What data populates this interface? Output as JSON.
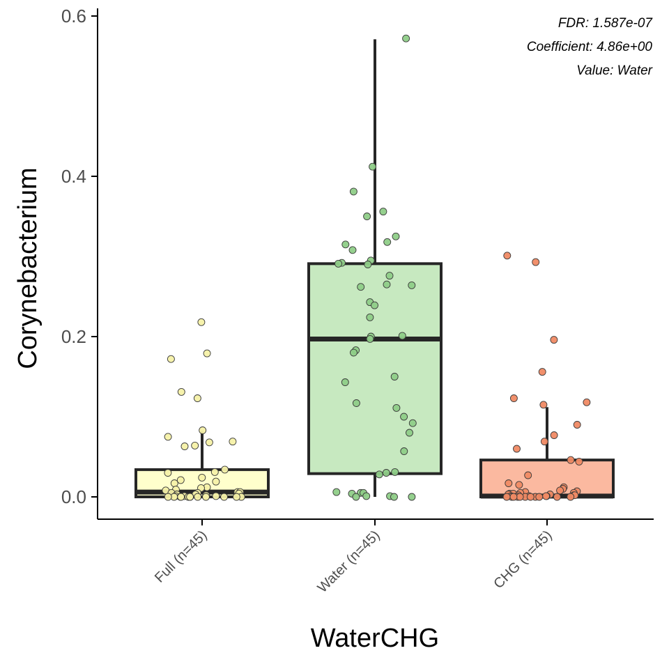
{
  "chart_data": {
    "type": "box",
    "xlabel": "WaterCHG",
    "ylabel": "Corynebacterium",
    "ylim": [
      -0.028,
      0.6
    ],
    "yticks": [
      0.0,
      0.2,
      0.4,
      0.6
    ],
    "ytick_labels": [
      "0.0",
      "0.2",
      "0.4",
      "0.6"
    ],
    "grid": false,
    "annotations": [
      "FDR: 1.587e-07",
      "Coefficient: 4.86e+00",
      "Value: Water"
    ],
    "groups": [
      {
        "label": "Full (n=45)",
        "fill": "#ffffcc",
        "point_fill": "#f5f1a8",
        "stats": {
          "min": 0.0,
          "q1": 0.0,
          "median": 0.006,
          "q3": 0.034,
          "max": 0.082
        },
        "points": [
          0.218,
          0.179,
          0.172,
          0.131,
          0.123,
          0.083,
          0.075,
          0.069,
          0.068,
          0.064,
          0.063,
          0.034,
          0.031,
          0.03,
          0.024,
          0.021,
          0.019,
          0.017,
          0.012,
          0.011,
          0.009,
          0.008,
          0.006,
          0.006,
          0.005,
          0.005,
          0.004,
          0.003,
          0.003,
          0.002,
          0.001,
          0.001,
          0.001,
          0.0,
          0.0,
          0.0,
          0.0,
          0.0,
          0.0,
          0.0,
          0.0,
          0.0,
          0.0,
          0.0,
          0.0
        ]
      },
      {
        "label": "Water (n=45)",
        "fill": "#c7e9c0",
        "point_fill": "#8fce88",
        "stats": {
          "min": 0.0,
          "q1": 0.029,
          "median": 0.197,
          "q3": 0.291,
          "max": 0.571
        },
        "points": [
          0.572,
          0.412,
          0.381,
          0.356,
          0.35,
          0.325,
          0.318,
          0.315,
          0.308,
          0.295,
          0.292,
          0.291,
          0.29,
          0.276,
          0.265,
          0.264,
          0.262,
          0.243,
          0.239,
          0.224,
          0.201,
          0.2,
          0.197,
          0.183,
          0.18,
          0.15,
          0.143,
          0.117,
          0.111,
          0.1,
          0.092,
          0.08,
          0.057,
          0.031,
          0.03,
          0.028,
          0.006,
          0.005,
          0.005,
          0.004,
          0.001,
          0.001,
          0.0,
          0.0,
          0.0
        ]
      },
      {
        "label": "CHG (n=45)",
        "fill": "#fbb9a0",
        "point_fill": "#f08a64",
        "stats": {
          "min": 0.0,
          "q1": 0.0,
          "median": 0.001,
          "q3": 0.046,
          "max": 0.112
        },
        "points": [
          0.301,
          0.293,
          0.196,
          0.156,
          0.123,
          0.118,
          0.115,
          0.09,
          0.077,
          0.069,
          0.06,
          0.046,
          0.044,
          0.027,
          0.017,
          0.015,
          0.012,
          0.01,
          0.008,
          0.007,
          0.006,
          0.005,
          0.005,
          0.004,
          0.004,
          0.003,
          0.003,
          0.002,
          0.002,
          0.002,
          0.001,
          0.001,
          0.001,
          0.001,
          0.0,
          0.0,
          0.0,
          0.0,
          0.0,
          0.0,
          0.0,
          0.0,
          0.0,
          0.0,
          0.0
        ]
      }
    ]
  }
}
